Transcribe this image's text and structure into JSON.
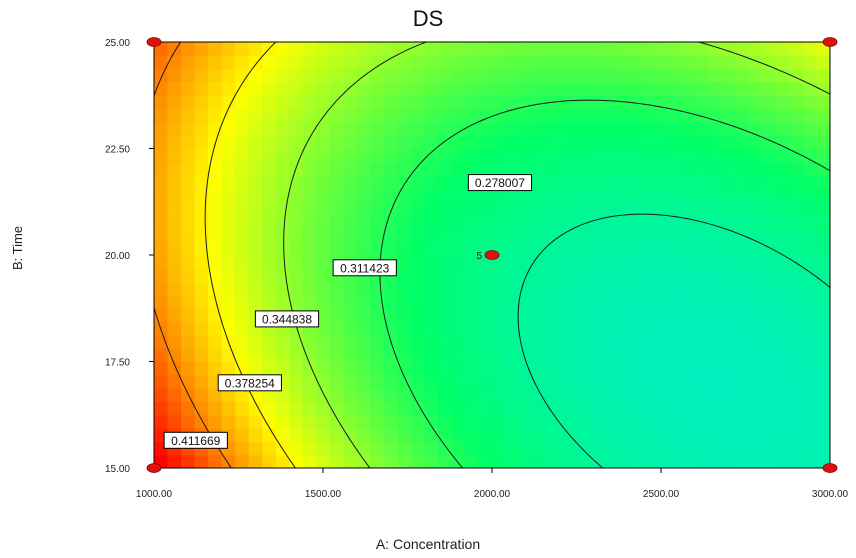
{
  "chart_data": {
    "type": "heatmap",
    "subtype": "contour",
    "title": "DS",
    "xlabel": "A: Concentration",
    "ylabel": "B: Time",
    "xlim": [
      1000,
      3000
    ],
    "ylim": [
      15,
      25
    ],
    "x_ticks": [
      "1000.00",
      "1500.00",
      "2000.00",
      "2500.00",
      "3000.00"
    ],
    "y_ticks": [
      "15.00",
      "17.50",
      "20.00",
      "22.50",
      "25.00"
    ],
    "colormap": [
      "#00e5ff",
      "#00ff66",
      "#ffff00",
      "#ff0000"
    ],
    "contour_levels": [
      {
        "label": "0.278007",
        "label_x": 1930,
        "label_y": 21.7
      },
      {
        "label": "0.311423",
        "label_x": 1530,
        "label_y": 19.7
      },
      {
        "label": "0.344838",
        "label_x": 1300,
        "label_y": 18.5
      },
      {
        "label": "0.378254",
        "label_x": 1190,
        "label_y": 17.0
      },
      {
        "label": "0.411669",
        "label_x": 1030,
        "label_y": 15.65
      }
    ],
    "design_points": [
      {
        "x": 1000,
        "y": 25,
        "label": ""
      },
      {
        "x": 3000,
        "y": 25,
        "label": ""
      },
      {
        "x": 1000,
        "y": 15,
        "label": ""
      },
      {
        "x": 3000,
        "y": 15,
        "label": ""
      },
      {
        "x": 2000,
        "y": 20,
        "label": "5"
      }
    ]
  }
}
